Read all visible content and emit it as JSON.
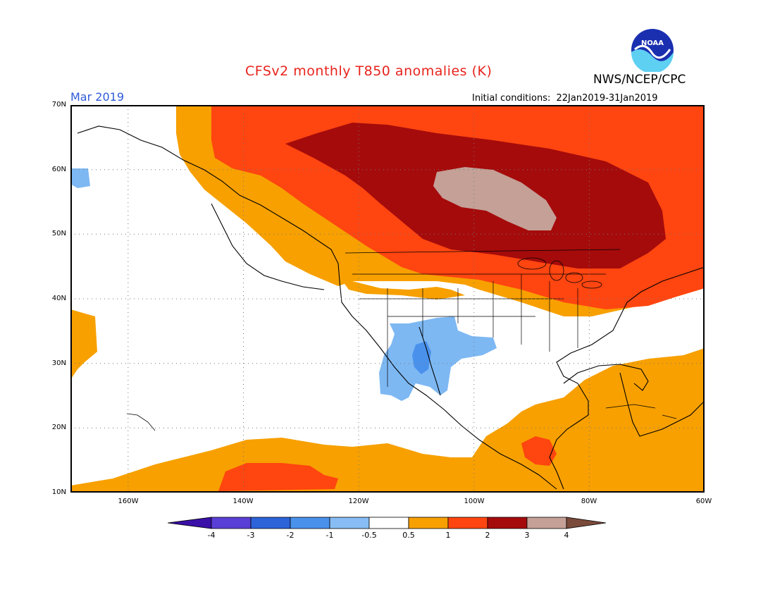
{
  "header": {
    "title": "CFSv2 monthly T850 anomalies (K)",
    "month": "Mar 2019",
    "initial_label": "Initial conditions:",
    "initial_range": "22Jan2019-31Jan2019",
    "agency": "NWS/NCEP/CPC",
    "logo_text": "NOAA"
  },
  "axes": {
    "lat_labels": [
      "70N",
      "60N",
      "50N",
      "40N",
      "30N",
      "20N",
      "10N"
    ],
    "lon_labels": [
      "160W",
      "140W",
      "120W",
      "100W",
      "80W",
      "60W"
    ]
  },
  "map": {
    "projection": "lat-lon",
    "lon_range": [
      -170,
      -60
    ],
    "lat_range": [
      10,
      70
    ],
    "grid": true
  },
  "colorbar": {
    "labels": [
      "-4",
      "-3",
      "-2",
      "-1",
      "-0.5",
      "0.5",
      "1",
      "2",
      "3",
      "4"
    ],
    "colors": [
      "#3a10a8",
      "#5a3fd6",
      "#2c63d9",
      "#4a91ec",
      "#87bdf4",
      "#ffffff",
      "#f7a000",
      "#ff4510",
      "#a50b0b",
      "#c4a097",
      "#7a4a3a"
    ]
  },
  "anomaly_colors": {
    "light_blue": "#7db8f3",
    "blue": "#4a91ec",
    "white": "#ffffff",
    "orange": "#f7a000",
    "red": "#ff4510",
    "dark_red": "#a50b0b",
    "tan": "#c4a097"
  }
}
